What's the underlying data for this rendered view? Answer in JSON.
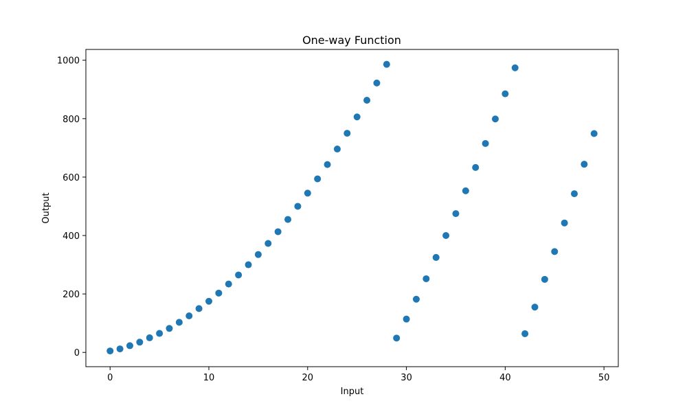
{
  "chart_data": {
    "type": "scatter",
    "title": "One-way Function",
    "xlabel": "Input",
    "ylabel": "Output",
    "xlim": [
      -2.45,
      51.45
    ],
    "ylim": [
      -48.9,
      1036.9
    ],
    "xticks": [
      0,
      10,
      20,
      30,
      40,
      50
    ],
    "yticks": [
      0,
      200,
      400,
      600,
      800,
      1000
    ],
    "grid": false,
    "legend": "none",
    "marker_color": "#1f77b4",
    "series": [
      {
        "x": [
          0,
          1,
          2,
          3,
          4,
          5,
          6,
          7,
          8,
          9,
          10,
          11,
          12,
          13,
          14,
          15,
          16,
          17,
          18,
          19,
          20,
          21,
          22,
          23,
          24,
          25,
          26,
          27,
          28,
          29,
          30,
          31,
          32,
          33,
          34,
          35,
          36,
          37,
          38,
          39,
          40,
          41,
          42,
          43,
          44,
          45,
          46,
          47,
          48,
          49
        ],
        "y": [
          5,
          12,
          23,
          35,
          50,
          65,
          82,
          103,
          125,
          150,
          175,
          203,
          234,
          265,
          300,
          335,
          373,
          413,
          455,
          500,
          545,
          594,
          643,
          696,
          750,
          806,
          863,
          922,
          986,
          49,
          114,
          182,
          252,
          325,
          400,
          475,
          553,
          633,
          715,
          799,
          885,
          974,
          64,
          155,
          250,
          345,
          443,
          543,
          644,
          749
        ]
      }
    ]
  }
}
